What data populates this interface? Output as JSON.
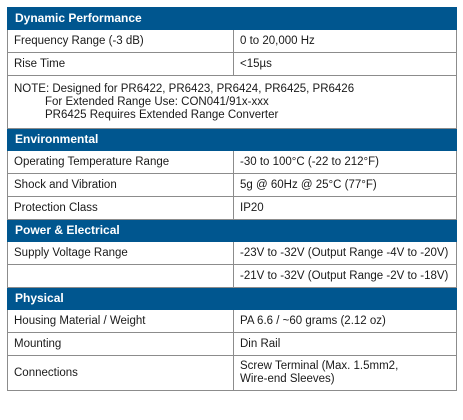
{
  "sections": [
    {
      "title": "Dynamic Performance",
      "rows": [
        {
          "label": "Frequency Range (-3 dB)",
          "value": "0 to 20,000 Hz"
        },
        {
          "label": "Rise Time",
          "value": "<15µs"
        }
      ],
      "note": {
        "line1": "NOTE: Designed for PR6422, PR6423, PR6424, PR6425, PR6426",
        "line2": "For Extended Range Use: CON041/91x-xxx",
        "line3": "PR6425 Requires Extended Range Converter"
      }
    },
    {
      "title": "Environmental",
      "rows": [
        {
          "label": "Operating Temperature Range",
          "value": "-30 to 100°C (-22 to 212°F)"
        },
        {
          "label": "Shock and Vibration",
          "value": "5g @ 60Hz @ 25°C (77°F)"
        },
        {
          "label": "Protection Class",
          "value": "IP20"
        }
      ]
    },
    {
      "title": "Power & Electrical",
      "rows": [
        {
          "label": "Supply Voltage Range",
          "value": "-23V to -32V (Output Range -4V to -20V)"
        },
        {
          "label": "",
          "value": "-21V to -32V (Output Range -2V to -18V)"
        }
      ]
    },
    {
      "title": "Physical",
      "rows": [
        {
          "label": "Housing Material / Weight",
          "value": "PA 6.6 / ~60 grams (2.12 oz)"
        },
        {
          "label": "Mounting",
          "value": "Din Rail"
        },
        {
          "label": "Connections",
          "value_line1": "Screw Terminal (Max. 1.5mm2,",
          "value_line2": "Wire-end Sleeves)"
        }
      ]
    }
  ]
}
